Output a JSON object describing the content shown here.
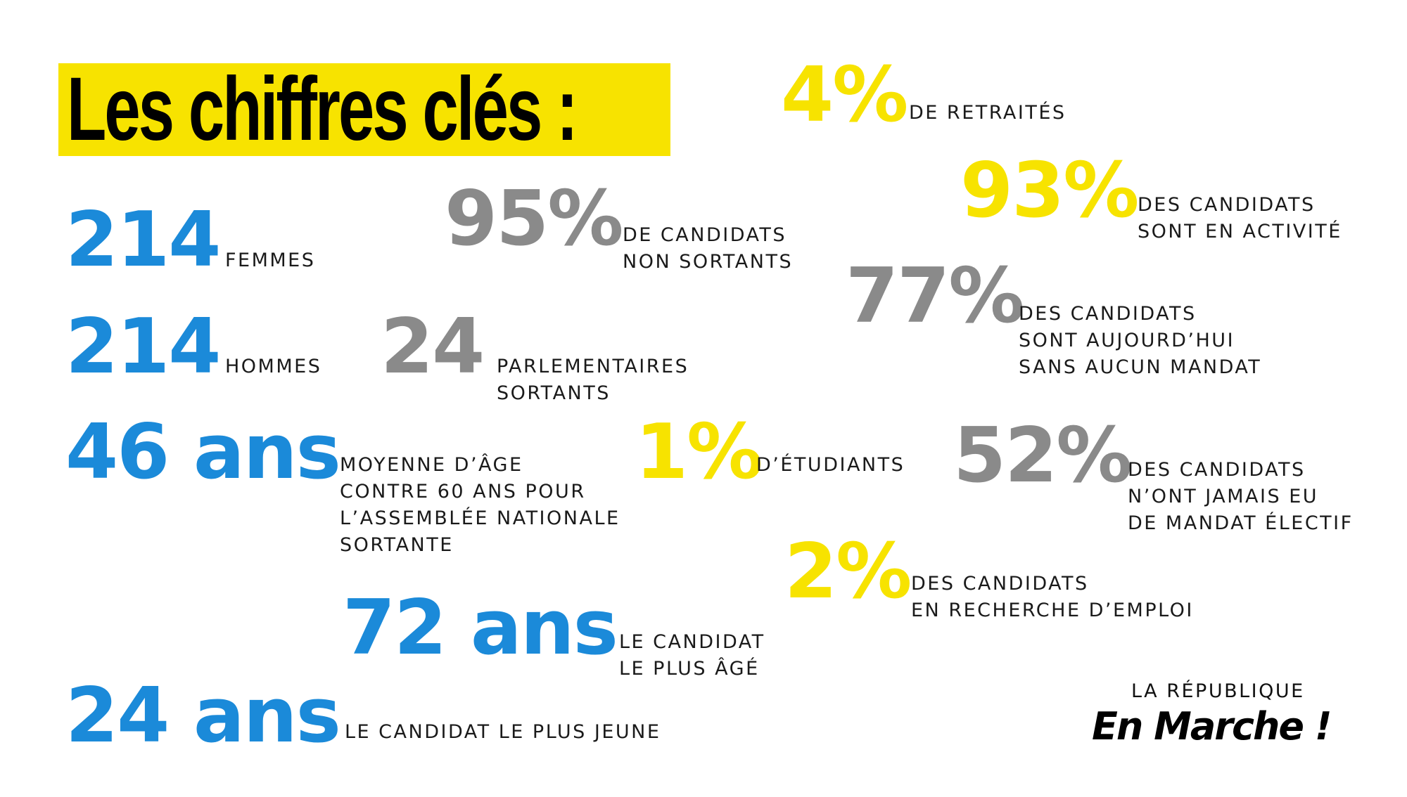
{
  "title": "Les chiffres clés :",
  "colors": {
    "blue": "#1b8ad9",
    "gray": "#8a8a8a",
    "yellow": "#f7e300",
    "title_bg": "#f7e300"
  },
  "stats": {
    "femmes": {
      "value": "214",
      "lines": [
        "FEMMES"
      ]
    },
    "hommes": {
      "value": "214",
      "lines": [
        "HOMMES"
      ]
    },
    "age_moyen": {
      "value": "46 ans",
      "lines": [
        "MOYENNE D’ÂGE",
        "CONTRE 60 ANS POUR",
        "L’ASSEMBLÉE NATIONALE",
        "SORTANTE"
      ]
    },
    "plus_age": {
      "value": "72 ans",
      "lines": [
        "LE CANDIDAT",
        "LE PLUS ÂGÉ"
      ]
    },
    "plus_jeune": {
      "value": "24 ans",
      "lines": [
        "LE CANDIDAT LE PLUS JEUNE"
      ]
    },
    "non_sortants": {
      "value": "95%",
      "lines": [
        "DE CANDIDATS",
        "NON SORTANTS"
      ]
    },
    "parlementaires": {
      "value": "24",
      "lines": [
        "PARLEMENTAIRES",
        "SORTANTS"
      ]
    },
    "sans_mandat": {
      "value": "77%",
      "lines": [
        "DES CANDIDATS",
        "SONT AUJOURD’HUI",
        "SANS AUCUN MANDAT"
      ]
    },
    "jamais_mandat": {
      "value": "52%",
      "lines": [
        "DES CANDIDATS",
        "N’ONT JAMAIS EU",
        "DE MANDAT ÉLECTIF"
      ]
    },
    "retraites": {
      "value": "4%",
      "lines": [
        "DE RETRAITÉS"
      ]
    },
    "activite": {
      "value": "93%",
      "lines": [
        "DES CANDIDATS",
        "SONT EN ACTIVITÉ"
      ]
    },
    "etudiants": {
      "value": "1%",
      "lines": [
        "D’ÉTUDIANTS"
      ]
    },
    "recherche_emploi": {
      "value": "2%",
      "lines": [
        "DES CANDIDATS",
        "EN RECHERCHE D’EMPLOI"
      ]
    }
  },
  "brand": {
    "top": "LA RÉPUBLIQUE",
    "main": "En Marche !"
  }
}
